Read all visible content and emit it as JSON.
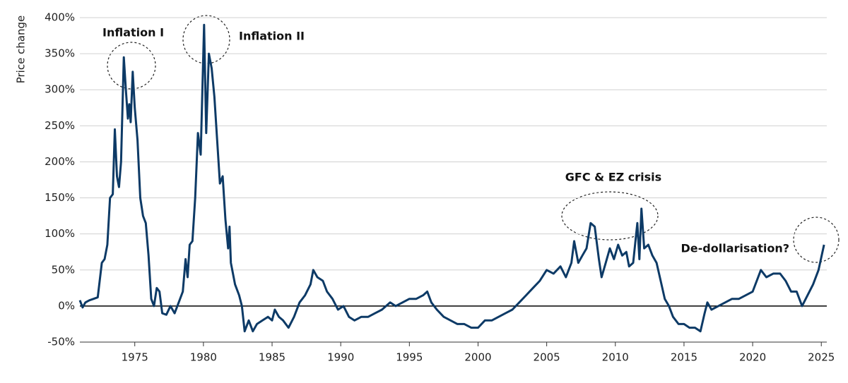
{
  "chart_data": {
    "type": "line",
    "y_label": "Price change",
    "annotations": [
      "Inflation I",
      "Inflation II",
      "GFC & EZ crisis",
      "De-dollarisation?"
    ],
    "x": [
      1971.0,
      1971.2,
      1971.4,
      1971.7,
      1972.0,
      1972.3,
      1972.6,
      1972.8,
      1973.0,
      1973.2,
      1973.4,
      1973.55,
      1973.7,
      1973.85,
      1974.0,
      1974.2,
      1974.35,
      1974.5,
      1974.6,
      1974.7,
      1974.85,
      1975.0,
      1975.2,
      1975.4,
      1975.6,
      1975.8,
      1976.0,
      1976.2,
      1976.4,
      1976.6,
      1976.8,
      1977.0,
      1977.3,
      1977.6,
      1977.9,
      1978.2,
      1978.5,
      1978.7,
      1978.85,
      1979.0,
      1979.2,
      1979.4,
      1979.6,
      1979.8,
      1980.05,
      1980.2,
      1980.4,
      1980.6,
      1980.8,
      1981.0,
      1981.2,
      1981.4,
      1981.6,
      1981.8,
      1981.9,
      1982.0,
      1982.3,
      1982.6,
      1982.8,
      1983.0,
      1983.3,
      1983.6,
      1983.9,
      1984.3,
      1984.7,
      1985.0,
      1985.2,
      1985.5,
      1985.8,
      1986.2,
      1986.6,
      1987.0,
      1987.4,
      1987.8,
      1988.0,
      1988.3,
      1988.7,
      1989.0,
      1989.4,
      1989.8,
      1990.2,
      1990.6,
      1991.0,
      1991.5,
      1992.0,
      1992.5,
      1993.0,
      1993.3,
      1993.6,
      1994.0,
      1994.5,
      1995.0,
      1995.5,
      1996.0,
      1996.3,
      1996.6,
      1997.0,
      1997.5,
      1998.0,
      1998.5,
      1999.0,
      1999.5,
      2000.0,
      2000.5,
      2001.0,
      2001.5,
      2002.0,
      2002.5,
      2003.0,
      2003.5,
      2004.0,
      2004.5,
      2005.0,
      2005.5,
      2006.0,
      2006.4,
      2006.8,
      2007.0,
      2007.3,
      2007.6,
      2007.9,
      2008.2,
      2008.5,
      2008.8,
      2009.0,
      2009.3,
      2009.6,
      2009.9,
      2010.2,
      2010.5,
      2010.8,
      2011.0,
      2011.3,
      2011.6,
      2011.75,
      2011.9,
      2012.1,
      2012.4,
      2012.7,
      2013.0,
      2013.3,
      2013.6,
      2013.9,
      2014.2,
      2014.6,
      2015.0,
      2015.4,
      2015.8,
      2016.2,
      2016.5,
      2016.7,
      2017.0,
      2017.5,
      2018.0,
      2018.5,
      2019.0,
      2019.5,
      2020.0,
      2020.3,
      2020.6,
      2021.0,
      2021.5,
      2022.0,
      2022.4,
      2022.8,
      2023.2,
      2023.6,
      2024.0,
      2024.4,
      2024.8,
      2025.2
    ],
    "series": [
      {
        "color": "#0d3a66",
        "values": [
          8,
          -2,
          5,
          8,
          10,
          12,
          60,
          65,
          85,
          150,
          155,
          245,
          180,
          165,
          200,
          345,
          300,
          260,
          280,
          255,
          325,
          275,
          230,
          150,
          125,
          115,
          70,
          10,
          0,
          25,
          20,
          -10,
          -12,
          0,
          -10,
          5,
          20,
          65,
          40,
          85,
          90,
          150,
          240,
          210,
          390,
          240,
          350,
          330,
          290,
          230,
          170,
          180,
          120,
          80,
          110,
          60,
          30,
          15,
          0,
          -35,
          -20,
          -35,
          -25,
          -20,
          -15,
          -20,
          -5,
          -15,
          -20,
          -30,
          -15,
          5,
          15,
          30,
          50,
          40,
          35,
          20,
          10,
          -5,
          0,
          -15,
          -20,
          -15,
          -15,
          -10,
          -5,
          0,
          5,
          0,
          5,
          10,
          10,
          15,
          20,
          5,
          -5,
          -15,
          -20,
          -25,
          -25,
          -30,
          -30,
          -20,
          -20,
          -15,
          -10,
          -5,
          5,
          15,
          25,
          35,
          50,
          45,
          55,
          40,
          60,
          90,
          60,
          70,
          80,
          115,
          110,
          65,
          40,
          60,
          80,
          65,
          85,
          70,
          75,
          55,
          60,
          115,
          65,
          135,
          80,
          85,
          70,
          60,
          35,
          10,
          0,
          -15,
          -25,
          -25,
          -30,
          -30,
          -35,
          -10,
          5,
          -5,
          0,
          5,
          10,
          10,
          15,
          20,
          35,
          50,
          40,
          45,
          45,
          35,
          20,
          20,
          0,
          15,
          30,
          50,
          85
        ]
      }
    ],
    "xlim": [
      1971,
      2025.4
    ],
    "xticks": [
      1975,
      1980,
      1985,
      1990,
      1995,
      2000,
      2005,
      2010,
      2015,
      2020,
      2025
    ],
    "ylim": [
      -50,
      400
    ],
    "yticks": [
      {
        "value": -50,
        "label": "-50%"
      },
      {
        "value": 0,
        "label": "0%"
      },
      {
        "value": 50,
        "label": "50%"
      },
      {
        "value": 100,
        "label": "100%"
      },
      {
        "value": 150,
        "label": "150%"
      },
      {
        "value": 200,
        "label": "200%"
      },
      {
        "value": 250,
        "label": "250%"
      },
      {
        "value": 300,
        "label": "300%"
      },
      {
        "value": 350,
        "label": "350%"
      },
      {
        "value": 400,
        "label": "400%"
      }
    ],
    "grid": true
  }
}
